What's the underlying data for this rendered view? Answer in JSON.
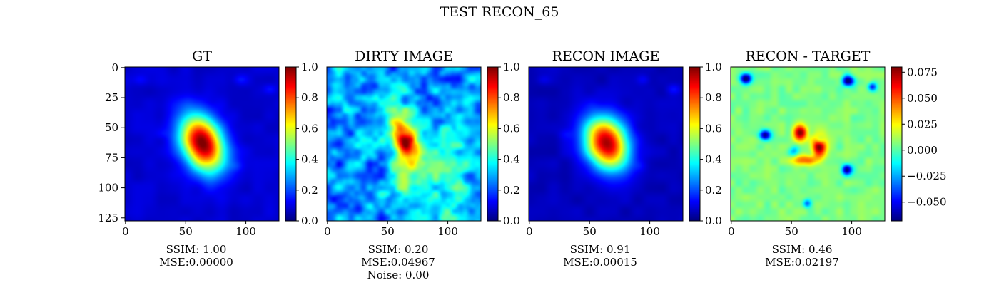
{
  "figure_title": "TEST RECON_65",
  "chart_data": [
    {
      "type": "heatmap",
      "title": "GT",
      "colormap": "jet",
      "image_size": [
        128,
        128
      ],
      "x_ticks": [
        "0",
        "50",
        "100"
      ],
      "y_ticks": [
        "0",
        "25",
        "50",
        "75",
        "100",
        "125"
      ],
      "clim": [
        0.0,
        1.0
      ],
      "colorbar_ticks": [
        "0.0",
        "0.2",
        "0.4",
        "0.6",
        "0.8",
        "1.0"
      ],
      "metrics": [
        "SSIM: 1.00",
        "MSE:0.00000"
      ],
      "blob": {
        "center": [
          64,
          63
        ],
        "peak": 1.0,
        "sigma": 13,
        "elongation": 0.3
      },
      "background": 0.06
    },
    {
      "type": "heatmap",
      "title": "DIRTY IMAGE",
      "colormap": "jet",
      "image_size": [
        128,
        128
      ],
      "x_ticks": [
        "0",
        "50",
        "100"
      ],
      "clim": [
        0.0,
        1.0
      ],
      "colorbar_ticks": [
        "0.0",
        "0.2",
        "0.4",
        "0.6",
        "0.8",
        "1.0"
      ],
      "metrics": [
        "SSIM: 0.20",
        "MSE:0.04967",
        "Noise: 0.00"
      ],
      "blob": {
        "center": [
          64,
          63
        ],
        "peak": 0.95,
        "sigma": 8,
        "elongation": 0.5
      },
      "background": 0.25
    },
    {
      "type": "heatmap",
      "title": "RECON IMAGE",
      "colormap": "jet",
      "image_size": [
        128,
        128
      ],
      "x_ticks": [
        "0",
        "50",
        "100"
      ],
      "clim": [
        0.0,
        1.0
      ],
      "colorbar_ticks": [
        "0.0",
        "0.2",
        "0.4",
        "0.6",
        "0.8",
        "1.0"
      ],
      "metrics": [
        "SSIM: 0.91",
        "MSE:0.00015"
      ],
      "blob": {
        "center": [
          64,
          63
        ],
        "peak": 0.95,
        "sigma": 13,
        "elongation": 0.2
      },
      "background": 0.04
    },
    {
      "type": "heatmap",
      "title": "RECON - TARGET",
      "colormap": "jet",
      "image_size": [
        128,
        128
      ],
      "x_ticks": [
        "0",
        "50",
        "100"
      ],
      "clim": [
        -0.068,
        0.08
      ],
      "colorbar_ticks": [
        "0.075",
        "0.050",
        "0.025",
        "0.000",
        "−0.025",
        "−0.050"
      ],
      "metrics": [
        "SSIM: 0.46",
        "MSE:0.02197"
      ],
      "background": 0.005
    }
  ]
}
